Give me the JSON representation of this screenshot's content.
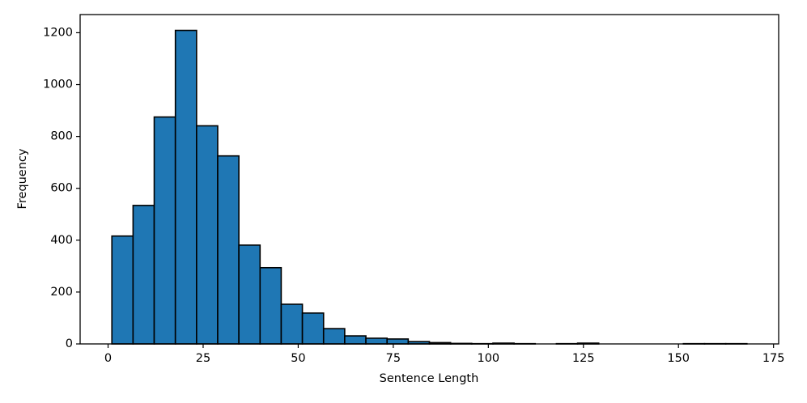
{
  "chart_data": {
    "type": "histogram",
    "xlabel": "Sentence Length",
    "ylabel": "Frequency",
    "bins": [
      1,
      6.57,
      12.13,
      17.7,
      23.27,
      28.83,
      34.4,
      39.97,
      45.53,
      51.1,
      56.67,
      62.23,
      67.8,
      73.37,
      78.93,
      84.5,
      90.07,
      95.63,
      101.2,
      106.77,
      112.33,
      117.9,
      123.47,
      129.03,
      134.6,
      140.17,
      145.73,
      151.3,
      156.87,
      162.43,
      168
    ],
    "values": [
      416,
      534,
      875,
      1209,
      841,
      725,
      381,
      294,
      153,
      119,
      59,
      31,
      22,
      19,
      9,
      5,
      2,
      1,
      3,
      1,
      0,
      1,
      3,
      0,
      0,
      0,
      0,
      1,
      1,
      1
    ],
    "color": "#1f77b4",
    "edgecolor": "#000000",
    "xlim": [
      -7.35,
      176.35
    ],
    "ylim": [
      0,
      1270
    ],
    "xticks": [
      0,
      25,
      50,
      75,
      100,
      125,
      150,
      175
    ],
    "yticks": [
      0,
      200,
      400,
      600,
      800,
      1000,
      1200
    ]
  }
}
